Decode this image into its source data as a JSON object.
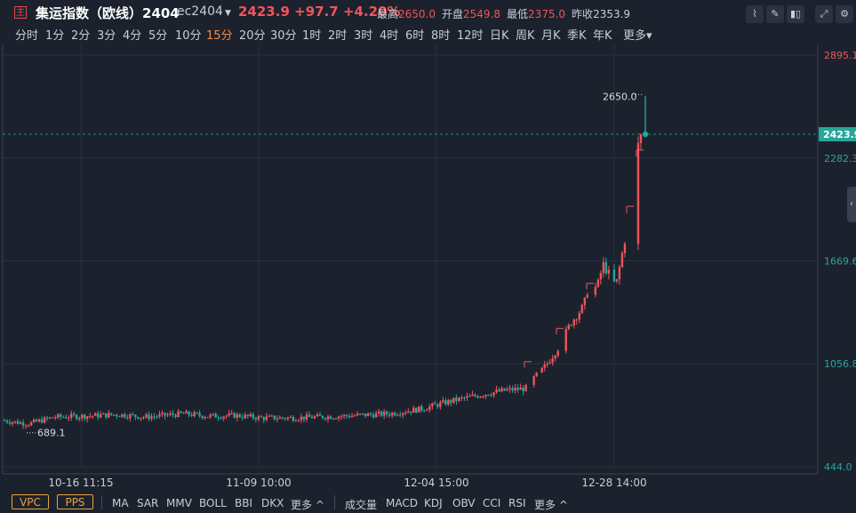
{
  "header": {
    "logo": "主",
    "title": "集运指数（欧线）2404",
    "contract": "ec2404",
    "price": "2423.9",
    "change": "+97.7",
    "change_pct": "+4.20%",
    "stats": [
      {
        "label": "最高",
        "value": "2650.0",
        "tone": "up"
      },
      {
        "label": "开盘",
        "value": "2549.8",
        "tone": "up"
      },
      {
        "label": "最低",
        "value": "2375.0",
        "tone": "up"
      },
      {
        "label": "昨收",
        "value": "2353.9",
        "tone": "flat"
      }
    ]
  },
  "toolbar": {
    "icons": [
      "line-chart-icon",
      "draw-pencil-icon",
      "candle-settings-icon",
      "fullscreen-icon",
      "settings-gear-icon"
    ]
  },
  "intervals": {
    "items": [
      "分时",
      "1分",
      "2分",
      "3分",
      "4分",
      "5分",
      "10分",
      "15分",
      "20分",
      "30分",
      "1时",
      "2时",
      "3时",
      "4时",
      "6时",
      "8时",
      "12时",
      "日K",
      "周K",
      "月K",
      "季K",
      "年K",
      "更多"
    ],
    "active": "15分"
  },
  "colors": {
    "background": "#1c222d",
    "up": "#f0545a",
    "down": "#26a69a",
    "grid": "#283040",
    "current_price_bg": "#26a69a"
  },
  "chart_data": {
    "type": "candlestick",
    "y_ticks": [
      "2895.1",
      "2282.3",
      "1669.6",
      "1056.8",
      "444.0"
    ],
    "y_min": 444.0,
    "y_max": 2895.1,
    "x_ticks": [
      "10-16 11:15",
      "11-09 10:00",
      "12-04 15:00",
      "12-28 14:00"
    ],
    "current_price": "2423.9",
    "high_label": "2650.0",
    "low_label": "689.1",
    "trend": [
      [
        0,
        720
      ],
      [
        4,
        700
      ],
      [
        8,
        740
      ],
      [
        12,
        745
      ],
      [
        18,
        755
      ],
      [
        22,
        740
      ],
      [
        28,
        760
      ],
      [
        32,
        745
      ],
      [
        36,
        750
      ],
      [
        40,
        735
      ],
      [
        45,
        735
      ],
      [
        52,
        745
      ],
      [
        60,
        760
      ],
      [
        65,
        790
      ],
      [
        70,
        840
      ],
      [
        75,
        880
      ],
      [
        78,
        900
      ],
      [
        81,
        910
      ],
      [
        82,
        960
      ],
      [
        84,
        1040
      ],
      [
        86,
        1150
      ],
      [
        88,
        1300
      ],
      [
        90,
        1400
      ],
      [
        91,
        1560
      ],
      [
        92,
        1500
      ],
      [
        93,
        1650
      ],
      [
        95,
        1520
      ],
      [
        97,
        1920
      ],
      [
        98,
        2300
      ],
      [
        99,
        2423.9
      ]
    ]
  },
  "footer": {
    "boxes": [
      "VPC",
      "PPS"
    ],
    "main_indicators": [
      "MA",
      "SAR",
      "MMV",
      "BOLL",
      "BBI",
      "DKX"
    ],
    "main_more": "更多 ^",
    "sub_indicators": [
      "成交量",
      "MACD",
      "KDJ",
      "OBV",
      "CCI",
      "RSI"
    ],
    "sub_more": "更多 ^"
  }
}
